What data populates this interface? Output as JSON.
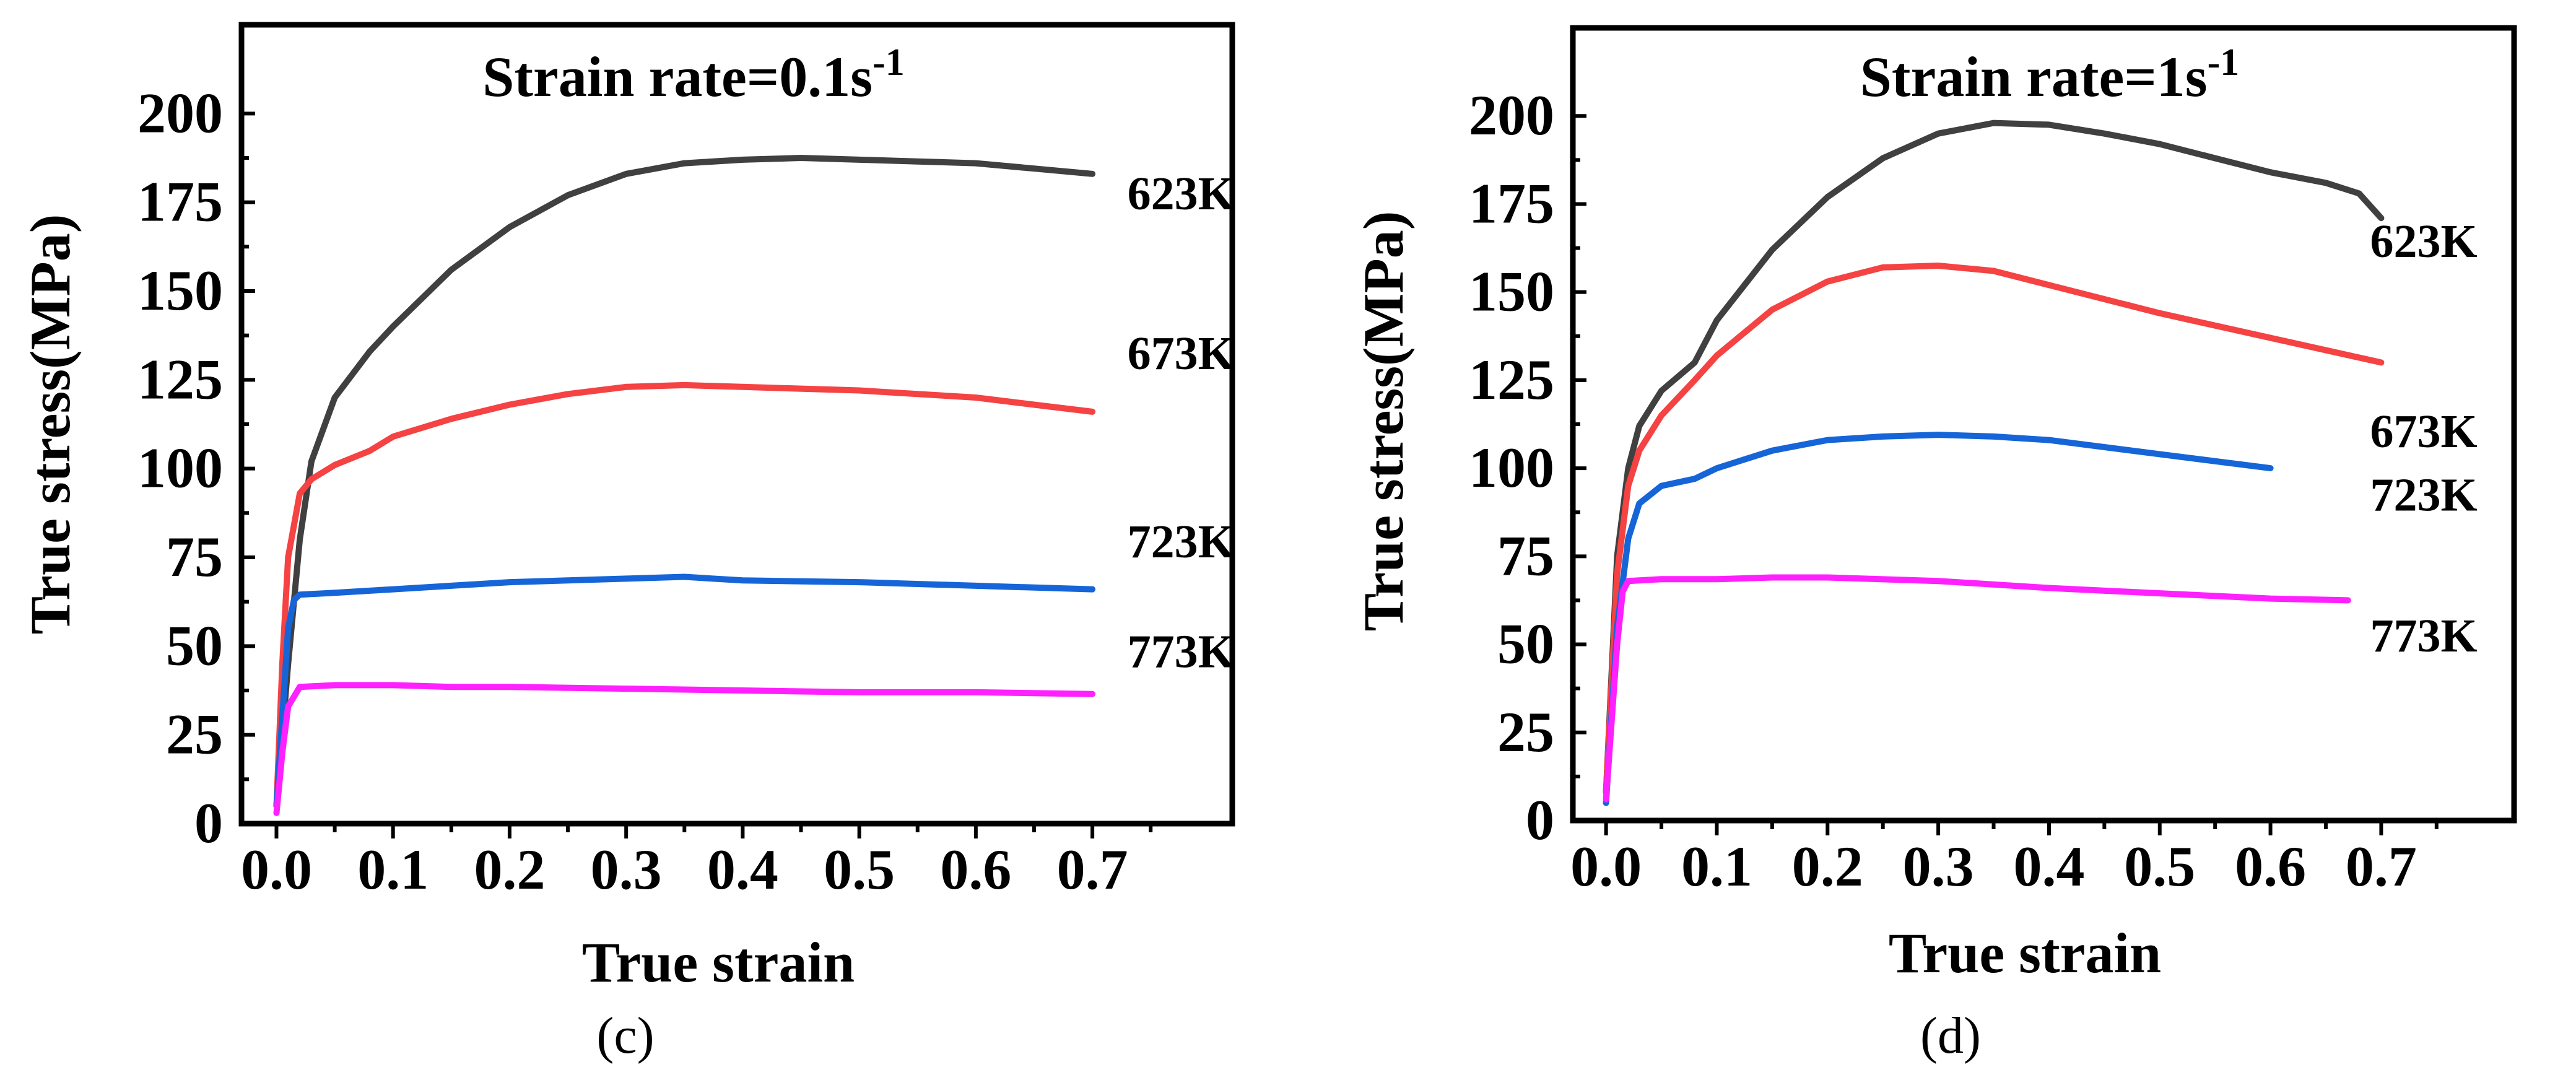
{
  "chart_data": [
    {
      "type": "line",
      "panel": "(c)",
      "title": "Strain rate=0.1s",
      "title_sup": "-1",
      "xlabel": "True strain",
      "ylabel": "True stress(MPa)",
      "xlim": [
        -0.03,
        0.82
      ],
      "ylim": [
        0,
        225
      ],
      "xticks": [
        0.0,
        0.1,
        0.2,
        0.3,
        0.4,
        0.5,
        0.6,
        0.7
      ],
      "xtick_labels": [
        "0.0",
        "0.1",
        "0.2",
        "0.3",
        "0.4",
        "0.5",
        "0.6",
        "0.7"
      ],
      "yticks": [
        0,
        25,
        50,
        75,
        100,
        125,
        150,
        175,
        200
      ],
      "ytick_labels": [
        "0",
        "25",
        "50",
        "75",
        "100",
        "125",
        "150",
        "175",
        "200"
      ],
      "series": [
        {
          "name": "623K",
          "label_text": "623K",
          "color": "#404040",
          "label_at": [
            0.73,
            173
          ],
          "x": [
            0.0,
            0.01,
            0.02,
            0.03,
            0.05,
            0.08,
            0.1,
            0.15,
            0.2,
            0.25,
            0.3,
            0.35,
            0.4,
            0.45,
            0.5,
            0.55,
            0.6,
            0.65,
            0.7
          ],
          "y": [
            5,
            45,
            80,
            102,
            120,
            133,
            140,
            156,
            168,
            177,
            183,
            186,
            187,
            187.5,
            187,
            186.5,
            186,
            184.5,
            183
          ]
        },
        {
          "name": "673K",
          "label_text": "673K",
          "color": "#f54242",
          "label_at": [
            0.73,
            128
          ],
          "x": [
            0.0,
            0.005,
            0.01,
            0.02,
            0.03,
            0.04,
            0.05,
            0.08,
            0.1,
            0.15,
            0.2,
            0.25,
            0.3,
            0.35,
            0.4,
            0.5,
            0.6,
            0.65,
            0.7
          ],
          "y": [
            5,
            45,
            75,
            93,
            97,
            99,
            101,
            105,
            109,
            114,
            118,
            121,
            123,
            123.5,
            123,
            122,
            120,
            118,
            116
          ]
        },
        {
          "name": "723K",
          "label_text": "723K",
          "color": "#1565d8",
          "label_at": [
            0.73,
            75
          ],
          "x": [
            0.0,
            0.005,
            0.01,
            0.015,
            0.02,
            0.05,
            0.1,
            0.15,
            0.2,
            0.25,
            0.3,
            0.35,
            0.4,
            0.5,
            0.6,
            0.7
          ],
          "y": [
            5,
            30,
            55,
            63,
            64.5,
            65,
            66,
            67,
            68,
            68.5,
            69,
            69.5,
            68.5,
            68,
            67,
            66
          ]
        },
        {
          "name": "773K",
          "label_text": "773K",
          "color": "#ff20ff",
          "label_at": [
            0.73,
            44
          ],
          "x": [
            0.0,
            0.005,
            0.01,
            0.02,
            0.05,
            0.1,
            0.15,
            0.2,
            0.3,
            0.4,
            0.5,
            0.6,
            0.7
          ],
          "y": [
            3,
            20,
            33,
            38.5,
            39,
            39,
            38.5,
            38.5,
            38,
            37.5,
            37,
            37,
            36.5
          ]
        }
      ]
    },
    {
      "type": "line",
      "panel": "(d)",
      "title": "Strain rate=1s",
      "title_sup": "-1",
      "xlabel": "True strain",
      "ylabel": "True stress(MPa)",
      "xlim": [
        -0.03,
        0.82
      ],
      "ylim": [
        0,
        225
      ],
      "xticks": [
        0.0,
        0.1,
        0.2,
        0.3,
        0.4,
        0.5,
        0.6,
        0.7
      ],
      "xtick_labels": [
        "0.0",
        "0.1",
        "0.2",
        "0.3",
        "0.4",
        "0.5",
        "0.6",
        "0.7"
      ],
      "yticks": [
        0,
        25,
        50,
        75,
        100,
        125,
        150,
        175,
        200
      ],
      "ytick_labels": [
        "0",
        "25",
        "50",
        "75",
        "100",
        "125",
        "150",
        "175",
        "200"
      ],
      "series": [
        {
          "name": "623K",
          "label_text": "623K",
          "color": "#404040",
          "label_at": [
            0.69,
            160
          ],
          "x": [
            0.0,
            0.01,
            0.02,
            0.03,
            0.05,
            0.08,
            0.1,
            0.15,
            0.2,
            0.25,
            0.3,
            0.35,
            0.4,
            0.45,
            0.5,
            0.55,
            0.6,
            0.65,
            0.68,
            0.7
          ],
          "y": [
            8,
            75,
            100,
            112,
            122,
            130,
            142,
            162,
            177,
            188,
            195,
            198,
            197.5,
            195,
            192,
            188,
            184,
            181,
            178,
            171
          ]
        },
        {
          "name": "673K",
          "label_text": "673K",
          "color": "#f54242",
          "label_at": [
            0.69,
            106
          ],
          "x": [
            0.0,
            0.01,
            0.02,
            0.03,
            0.05,
            0.08,
            0.1,
            0.15,
            0.2,
            0.25,
            0.3,
            0.35,
            0.4,
            0.5,
            0.6,
            0.7
          ],
          "y": [
            8,
            70,
            95,
            105,
            115,
            125,
            132,
            145,
            153,
            157,
            157.5,
            156,
            152,
            144,
            137,
            130
          ]
        },
        {
          "name": "723K",
          "label_text": "723K",
          "color": "#1565d8",
          "label_at": [
            0.69,
            88
          ],
          "x": [
            0.0,
            0.01,
            0.02,
            0.03,
            0.05,
            0.08,
            0.1,
            0.15,
            0.2,
            0.25,
            0.3,
            0.35,
            0.4,
            0.5,
            0.6
          ],
          "y": [
            5,
            55,
            80,
            90,
            95,
            97,
            100,
            105,
            108,
            109,
            109.5,
            109,
            108,
            104,
            100
          ]
        },
        {
          "name": "773K",
          "label_text": "773K",
          "color": "#ff20ff",
          "label_at": [
            0.69,
            48
          ],
          "x": [
            0.0,
            0.01,
            0.015,
            0.02,
            0.05,
            0.1,
            0.15,
            0.2,
            0.3,
            0.4,
            0.5,
            0.6,
            0.67
          ],
          "y": [
            6,
            50,
            65,
            68,
            68.5,
            68.5,
            69,
            69,
            68,
            66,
            64.5,
            63,
            62.5
          ]
        }
      ]
    }
  ]
}
